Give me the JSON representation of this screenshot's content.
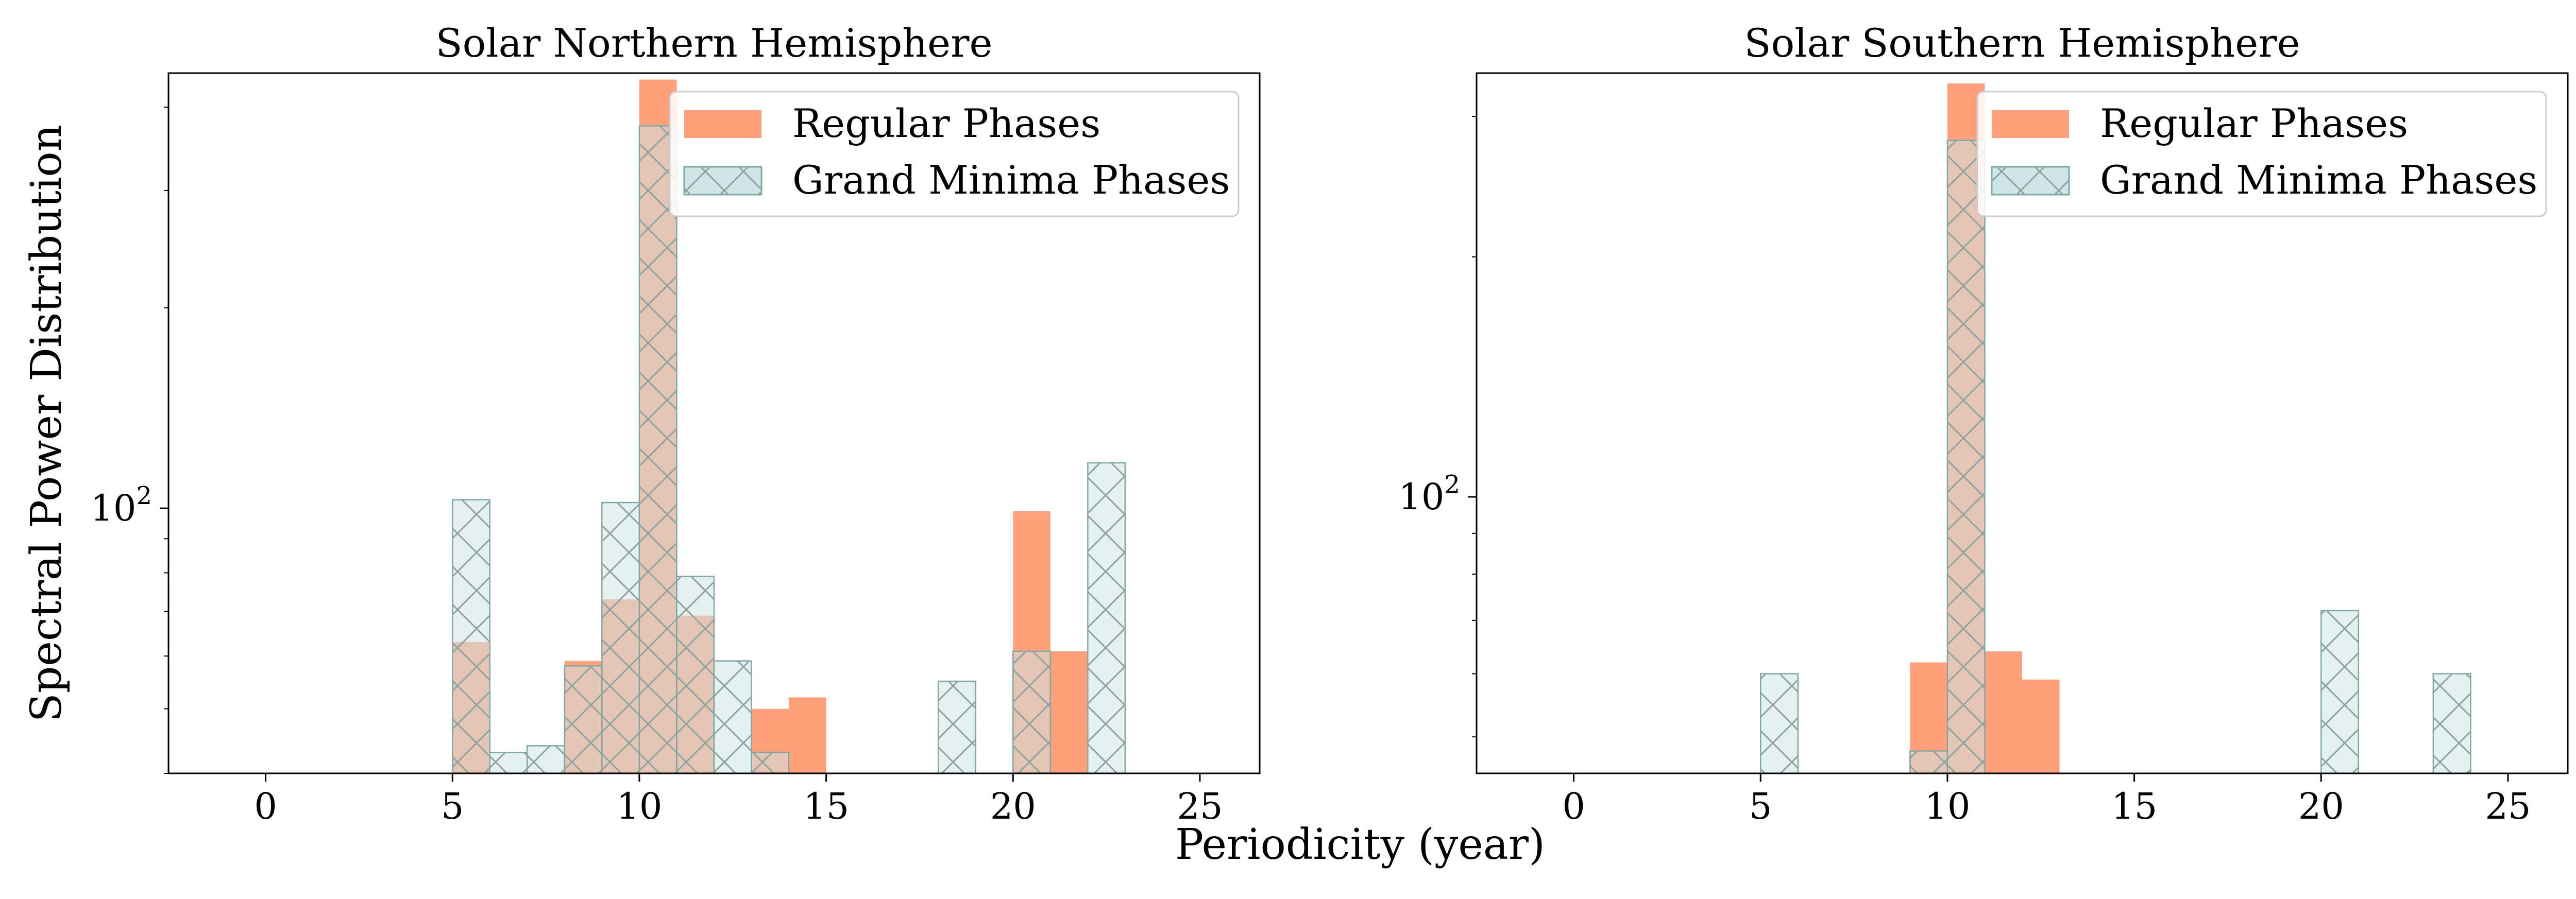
{
  "chart_data": {
    "type": "bar",
    "xlabel": "Periodicity (year)",
    "ylabel": "Spectral Power Distribution",
    "yscale": "log",
    "grid": false,
    "colors": {
      "regular_fill": "#ffa07a",
      "gm_fill": "#cfe6e4",
      "gm_stroke": "#7aa9a6",
      "hatch": "#8fa3a1"
    },
    "legend": {
      "placement": "top-right",
      "entries": [
        "Regular Phases",
        "Grand Minima Phases"
      ]
    },
    "panels": [
      {
        "title": "Solar Northern Hemisphere",
        "xlim": [
          -2.6,
          26.6
        ],
        "ylim": [
          40,
          450
        ],
        "xticks": [
          {
            "value": 0,
            "label": "0"
          },
          {
            "value": 5,
            "label": "5"
          },
          {
            "value": 10,
            "label": "10"
          },
          {
            "value": 15,
            "label": "15"
          },
          {
            "value": 20,
            "label": "20"
          },
          {
            "value": 25,
            "label": "25"
          }
        ],
        "ytick": {
          "value": 100,
          "base": "10",
          "exponent": "2"
        },
        "bin_width": 1,
        "series": [
          {
            "name": "Regular Phases",
            "bins": [
              [
                5,
                63
              ],
              [
                8,
                59
              ],
              [
                9,
                73
              ],
              [
                10,
                440
              ],
              [
                11,
                69
              ],
              [
                13,
                50
              ],
              [
                14,
                52
              ],
              [
                20,
                99
              ],
              [
                21,
                61
              ]
            ]
          },
          {
            "name": "Grand Minima Phases",
            "bins": [
              [
                5,
                103
              ],
              [
                6,
                43
              ],
              [
                7,
                44
              ],
              [
                8,
                58
              ],
              [
                9,
                102
              ],
              [
                10,
                375
              ],
              [
                11,
                79
              ],
              [
                12,
                59
              ],
              [
                13,
                43
              ],
              [
                18,
                55
              ],
              [
                20,
                61
              ],
              [
                22,
                117
              ]
            ]
          }
        ]
      },
      {
        "title": "Solar Southern Hemisphere",
        "xlim": [
          -2.6,
          26.6
        ],
        "ylim": [
          45,
          340
        ],
        "xticks": [
          {
            "value": 0,
            "label": "0"
          },
          {
            "value": 5,
            "label": "5"
          },
          {
            "value": 10,
            "label": "10"
          },
          {
            "value": 15,
            "label": "15"
          },
          {
            "value": 20,
            "label": "20"
          },
          {
            "value": 25,
            "label": "25"
          }
        ],
        "ytick": {
          "value": 100,
          "base": "10",
          "exponent": "2"
        },
        "bin_width": 1,
        "series": [
          {
            "name": "Regular Phases",
            "bins": [
              [
                9,
                62
              ],
              [
                10,
                330
              ],
              [
                11,
                64
              ],
              [
                12,
                59
              ]
            ]
          },
          {
            "name": "Grand Minima Phases",
            "bins": [
              [
                5,
                60
              ],
              [
                9,
                48
              ],
              [
                10,
                280
              ],
              [
                20,
                72
              ],
              [
                23,
                60
              ]
            ]
          }
        ]
      }
    ]
  }
}
